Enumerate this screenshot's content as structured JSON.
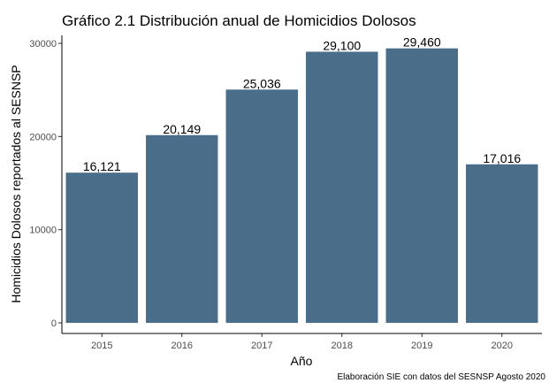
{
  "chart_data": {
    "type": "bar",
    "title": "Gráfico 2.1 Distribución anual de Homicidios Dolosos",
    "xlabel": "Año",
    "ylabel": "Homicidios Dolosos reportados al SESNSP",
    "caption": "Elaboración SIE con datos del SESNSP Agosto 2020",
    "categories": [
      "2015",
      "2016",
      "2017",
      "2018",
      "2019",
      "2020"
    ],
    "values": [
      16121,
      20149,
      25036,
      29100,
      29460,
      17016
    ],
    "data_labels": [
      "16,121",
      "20,149",
      "25,036",
      "29,100",
      "29,460",
      "17,016"
    ],
    "yticks": [
      0,
      10000,
      20000,
      30000
    ],
    "ylim": [
      0,
      30950
    ],
    "bar_color": "#4a6e8a",
    "grid": false,
    "legend": "none"
  }
}
